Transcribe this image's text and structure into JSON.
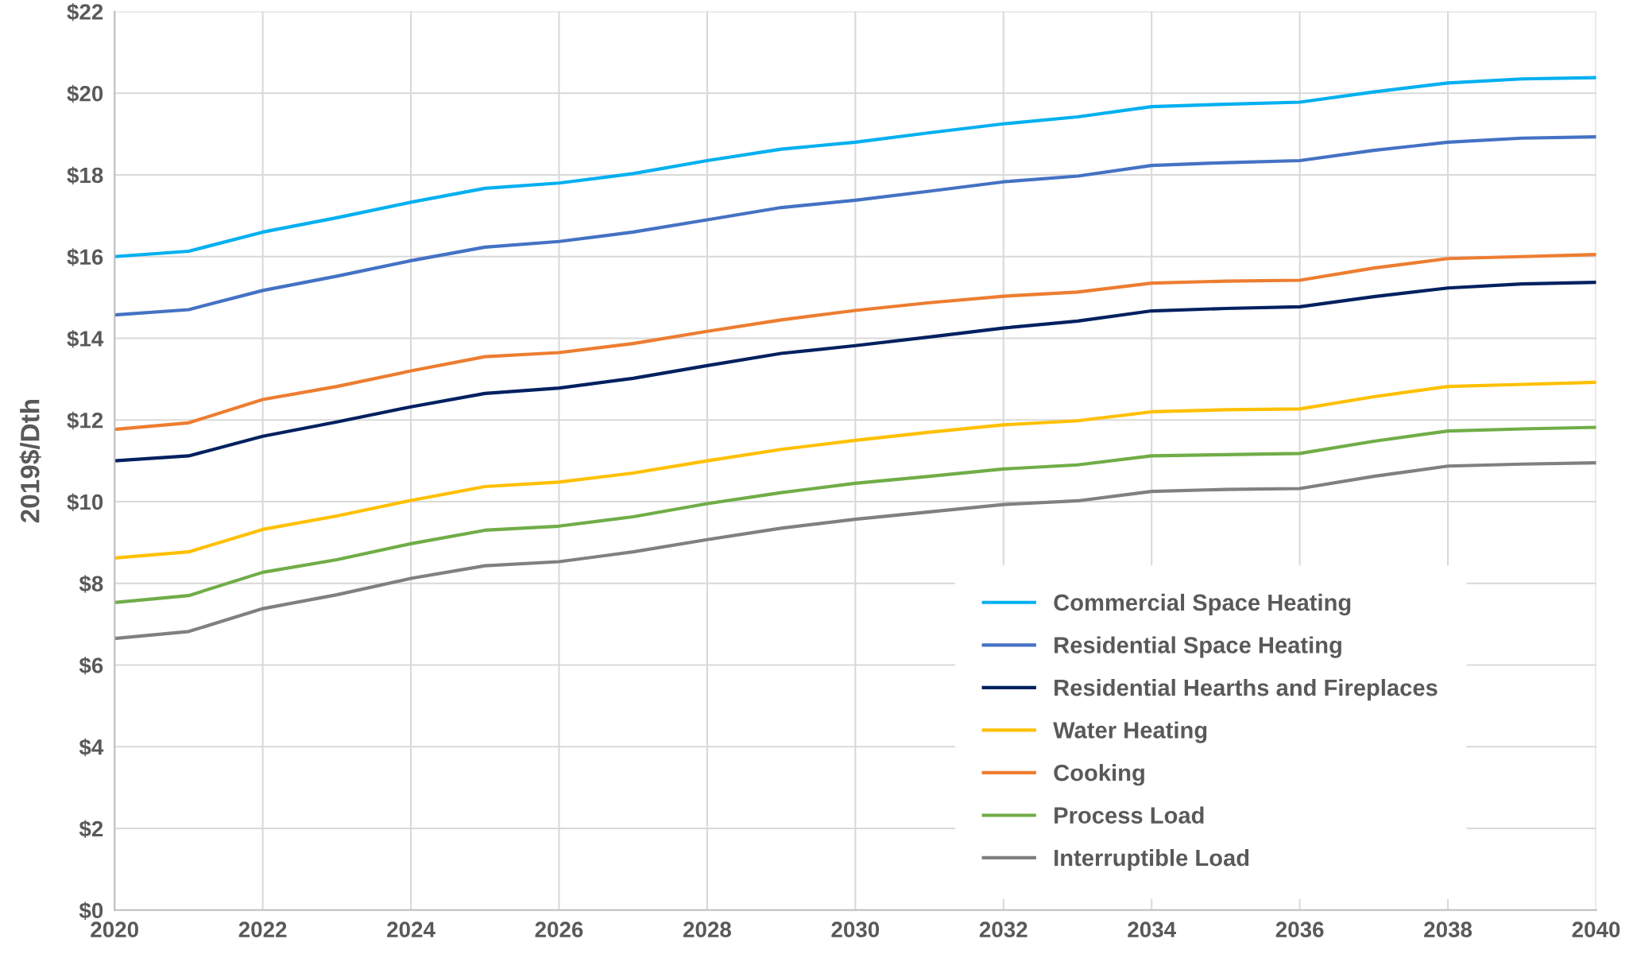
{
  "chart_data": {
    "type": "line",
    "ylabel": "2019$/Dth",
    "x": [
      2020,
      2021,
      2022,
      2023,
      2024,
      2025,
      2026,
      2027,
      2028,
      2029,
      2030,
      2031,
      2032,
      2033,
      2034,
      2035,
      2036,
      2037,
      2038,
      2039,
      2040
    ],
    "series": [
      {
        "name": "Commercial Space Heating",
        "color": "#00b0f0",
        "values": [
          16.0,
          16.13,
          16.6,
          16.95,
          17.33,
          17.67,
          17.8,
          18.03,
          18.35,
          18.63,
          18.8,
          19.03,
          19.25,
          19.42,
          19.67,
          19.73,
          19.78,
          20.03,
          20.25,
          20.35,
          20.38
        ]
      },
      {
        "name": "Residential Space Heating",
        "color": "#4472c4",
        "values": [
          14.57,
          14.7,
          15.17,
          15.52,
          15.9,
          16.23,
          16.37,
          16.6,
          16.9,
          17.2,
          17.38,
          17.6,
          17.83,
          17.97,
          18.23,
          18.3,
          18.35,
          18.6,
          18.8,
          18.9,
          18.93
        ]
      },
      {
        "name": "Residential Hearths and Fireplaces",
        "color": "#002060",
        "values": [
          11.0,
          11.12,
          11.6,
          11.95,
          12.32,
          12.65,
          12.78,
          13.02,
          13.33,
          13.63,
          13.82,
          14.03,
          14.25,
          14.42,
          14.67,
          14.73,
          14.77,
          15.02,
          15.23,
          15.33,
          15.37
        ]
      },
      {
        "name": "Water Heating",
        "color": "#ffc000",
        "values": [
          8.62,
          8.77,
          9.32,
          9.65,
          10.03,
          10.37,
          10.48,
          10.7,
          11.0,
          11.28,
          11.5,
          11.7,
          11.88,
          11.98,
          12.2,
          12.25,
          12.27,
          12.57,
          12.82,
          12.87,
          12.92
        ]
      },
      {
        "name": "Cooking",
        "color": "#ed7d31",
        "values": [
          11.77,
          11.93,
          12.5,
          12.82,
          13.2,
          13.55,
          13.65,
          13.87,
          14.17,
          14.45,
          14.68,
          14.87,
          15.03,
          15.13,
          15.35,
          15.4,
          15.42,
          15.72,
          15.95,
          16.0,
          16.05
        ]
      },
      {
        "name": "Process Load",
        "color": "#70ad47",
        "values": [
          7.53,
          7.7,
          8.27,
          8.58,
          8.97,
          9.3,
          9.4,
          9.63,
          9.95,
          10.22,
          10.45,
          10.62,
          10.8,
          10.9,
          11.12,
          11.15,
          11.18,
          11.48,
          11.73,
          11.78,
          11.82
        ]
      },
      {
        "name": "Interruptible Load",
        "color": "#808080",
        "values": [
          6.65,
          6.82,
          7.38,
          7.72,
          8.12,
          8.43,
          8.53,
          8.77,
          9.07,
          9.35,
          9.57,
          9.75,
          9.93,
          10.02,
          10.25,
          10.3,
          10.32,
          10.62,
          10.87,
          10.92,
          10.95
        ]
      }
    ],
    "xlim": [
      2020,
      2040
    ],
    "xticks": [
      2020,
      2022,
      2024,
      2026,
      2028,
      2030,
      2032,
      2034,
      2036,
      2038,
      2040
    ],
    "ylim": [
      0,
      22
    ],
    "yticks": [
      {
        "value": 0,
        "label": "$0"
      },
      {
        "value": 2,
        "label": "$2"
      },
      {
        "value": 4,
        "label": "$4"
      },
      {
        "value": 6,
        "label": "$6"
      },
      {
        "value": 8,
        "label": "$8"
      },
      {
        "value": 10,
        "label": "$10"
      },
      {
        "value": 12,
        "label": "$12"
      },
      {
        "value": 14,
        "label": "$14"
      },
      {
        "value": 16,
        "label": "$16"
      },
      {
        "value": 18,
        "label": "$18"
      },
      {
        "value": 20,
        "label": "$20"
      },
      {
        "value": 22,
        "label": "$22"
      }
    ],
    "grid": true,
    "legend": "bottom right",
    "marker": "none",
    "line_style": "solid"
  }
}
